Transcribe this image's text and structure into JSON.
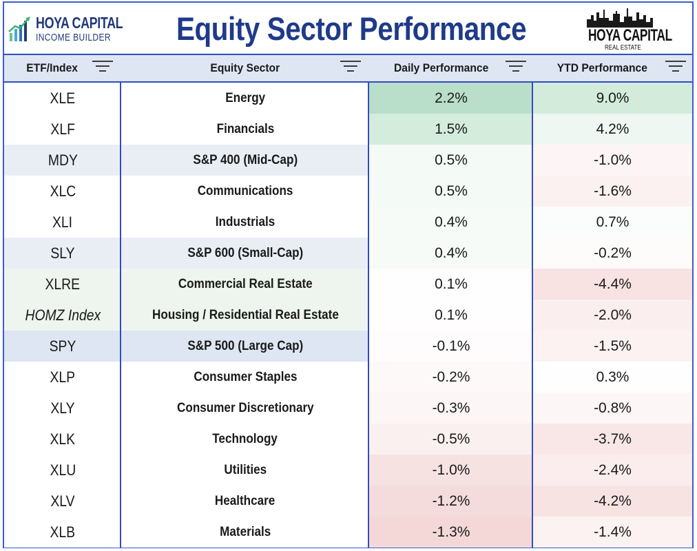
{
  "header": {
    "logo_left_line1": "HOYA CAPITAL",
    "logo_left_line2": "INCOME BUILDER",
    "title": "Equity Sector Performance",
    "logo_right_line1": "HOYA CAPITAL",
    "logo_right_line2": "REAL ESTATE"
  },
  "columns": {
    "etf": "ETF/Index",
    "sector": "Equity Sector",
    "daily": "Daily Performance",
    "ytd": "YTD Performance"
  },
  "colors": {
    "border_blue": "#2f4cc0",
    "title_blue": "#1f3a8a",
    "header_bg": "#dfe6f3"
  },
  "rows": [
    {
      "etf": "XLE",
      "sector": "Energy",
      "daily": "2.2%",
      "ytd": "9.0%",
      "etf_bg": "#ffffff",
      "day_bg": "#b9dec9",
      "ytd_bg": "#d2ebdb",
      "italic": false
    },
    {
      "etf": "XLF",
      "sector": "Financials",
      "daily": "1.5%",
      "ytd": "4.2%",
      "etf_bg": "#ffffff",
      "day_bg": "#d4ecdc",
      "ytd_bg": "#eef7f1",
      "italic": false
    },
    {
      "etf": "MDY",
      "sector": "S&P 400 (Mid-Cap)",
      "daily": "0.5%",
      "ytd": "-1.0%",
      "etf_bg": "#e9eef5",
      "day_bg": "#f4faf6",
      "ytd_bg": "#fdf5f5",
      "italic": false
    },
    {
      "etf": "XLC",
      "sector": "Communications",
      "daily": "0.5%",
      "ytd": "-1.6%",
      "etf_bg": "#ffffff",
      "day_bg": "#f4faf6",
      "ytd_bg": "#fcf1f1",
      "italic": false
    },
    {
      "etf": "XLI",
      "sector": "Industrials",
      "daily": "0.4%",
      "ytd": "0.7%",
      "etf_bg": "#ffffff",
      "day_bg": "#f7fbf8",
      "ytd_bg": "#fafdfb",
      "italic": false
    },
    {
      "etf": "SLY",
      "sector": "S&P 600 (Small-Cap)",
      "daily": "0.4%",
      "ytd": "-0.2%",
      "etf_bg": "#e9eef5",
      "day_bg": "#f7fbf8",
      "ytd_bg": "#fefbfb",
      "italic": false
    },
    {
      "etf": "XLRE",
      "sector": "Commercial Real Estate",
      "daily": "0.1%",
      "ytd": "-4.4%",
      "etf_bg": "#eef4ee",
      "day_bg": "#fdfefd",
      "ytd_bg": "#f8e2e2",
      "italic": false
    },
    {
      "etf": "HOMZ Index",
      "sector": "Housing / Residential Real Estate",
      "daily": "0.1%",
      "ytd": "-2.0%",
      "etf_bg": "#eef4ee",
      "day_bg": "#fdfefd",
      "ytd_bg": "#fbeeee",
      "italic": true
    },
    {
      "etf": "SPY",
      "sector": "S&P 500 (Large Cap)",
      "daily": "-0.1%",
      "ytd": "-1.5%",
      "etf_bg": "#dde6f2",
      "day_bg": "#fefcfc",
      "ytd_bg": "#fcf2f2",
      "italic": false
    },
    {
      "etf": "XLP",
      "sector": "Consumer Staples",
      "daily": "-0.2%",
      "ytd": "0.3%",
      "etf_bg": "#ffffff",
      "day_bg": "#fdf9f9",
      "ytd_bg": "#fdfefd",
      "italic": false
    },
    {
      "etf": "XLY",
      "sector": "Consumer Discretionary",
      "daily": "-0.3%",
      "ytd": "-0.8%",
      "etf_bg": "#ffffff",
      "day_bg": "#fcf6f6",
      "ytd_bg": "#fdf6f6",
      "italic": false
    },
    {
      "etf": "XLK",
      "sector": "Technology",
      "daily": "-0.5%",
      "ytd": "-3.7%",
      "etf_bg": "#ffffff",
      "day_bg": "#fbf0f0",
      "ytd_bg": "#f9e6e6",
      "italic": false
    },
    {
      "etf": "XLU",
      "sector": "Utilities",
      "daily": "-1.0%",
      "ytd": "-2.4%",
      "etf_bg": "#ffffff",
      "day_bg": "#f7e2e2",
      "ytd_bg": "#fbeded",
      "italic": false
    },
    {
      "etf": "XLV",
      "sector": "Healthcare",
      "daily": "-1.2%",
      "ytd": "-4.2%",
      "etf_bg": "#ffffff",
      "day_bg": "#f5dcdc",
      "ytd_bg": "#f8e3e3",
      "italic": false
    },
    {
      "etf": "XLB",
      "sector": "Materials",
      "daily": "-1.3%",
      "ytd": "-1.4%",
      "etf_bg": "#ffffff",
      "day_bg": "#f4d8d8",
      "ytd_bg": "#fcf2f2",
      "italic": false
    }
  ]
}
